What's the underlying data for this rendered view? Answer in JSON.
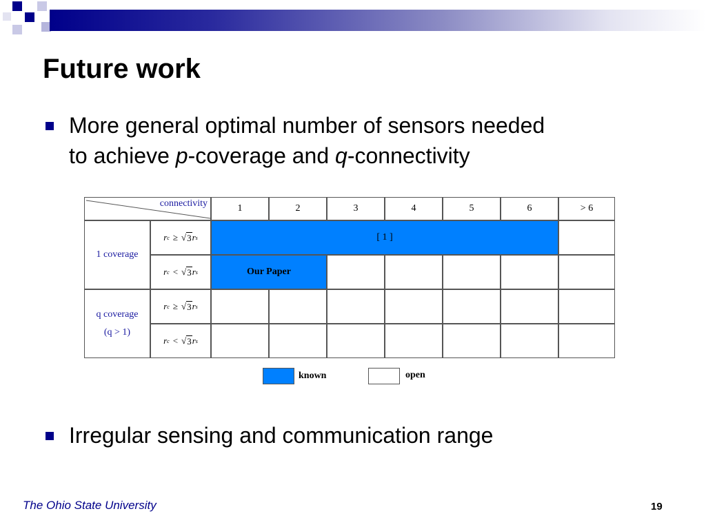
{
  "slide": {
    "title": "Future work",
    "bullets": [
      {
        "line1": "More general optimal number of sensors needed",
        "line2_pre": "to achieve ",
        "line2_p": "p",
        "line2_mid": "-coverage and ",
        "line2_q": "q",
        "line2_post": "-connectivity"
      },
      {
        "text": "Irregular sensing and communication range"
      }
    ],
    "footer": {
      "org": "The Ohio State University",
      "page": "19"
    }
  },
  "table": {
    "corner_label": "connectivity",
    "columns": [
      "1",
      "2",
      "3",
      "4",
      "5",
      "6",
      "> 6"
    ],
    "groups": [
      {
        "label_line1": "1 coverage",
        "label_line2": ""
      },
      {
        "label_line1": "q coverage",
        "label_line2": "(q > 1)"
      }
    ],
    "conditions": {
      "r_c": "r",
      "c_sub": "c",
      "ge": "≥",
      "lt": "<",
      "sqrt": "√",
      "three": "3",
      "r_s": "r",
      "s_sub": "s"
    },
    "known_span_label": "[ 1 ]",
    "our_paper_label": "Our Paper"
  },
  "legend": {
    "known": "known",
    "open": "open",
    "known_color": "#0080ff",
    "open_color": "#ffffff"
  }
}
